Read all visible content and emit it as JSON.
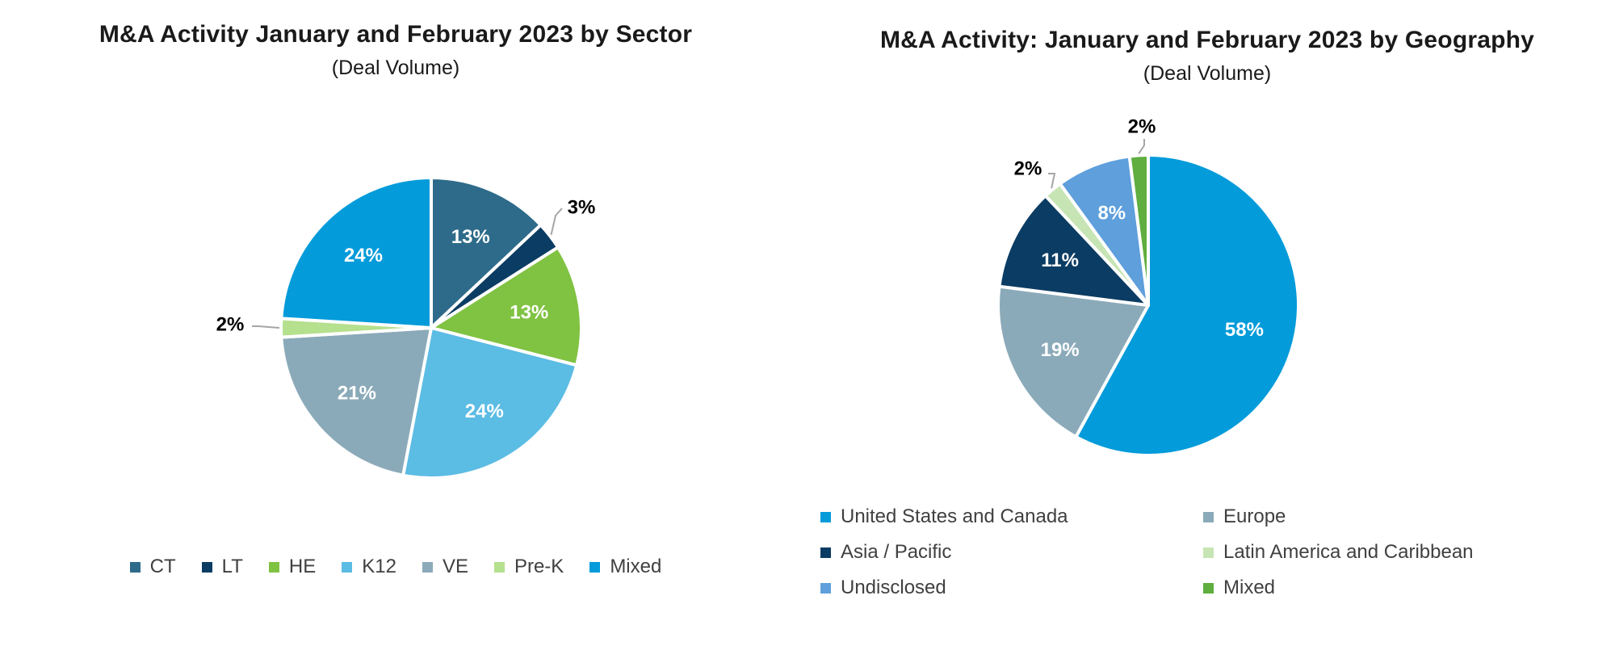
{
  "chart_data": [
    {
      "type": "pie",
      "title": "M&A Activity January and February 2023 by Sector",
      "subtitle": "(Deal Volume)",
      "slices": [
        {
          "label": "CT",
          "value": 13,
          "display": "13%",
          "color": "#2E6B8A",
          "label_color": "#ffffff"
        },
        {
          "label": "LT",
          "value": 3,
          "display": "3%",
          "color": "#0B3C63",
          "label_color": "#000000"
        },
        {
          "label": "HE",
          "value": 13,
          "display": "13%",
          "color": "#80C242",
          "label_color": "#ffffff"
        },
        {
          "label": "K12",
          "value": 24,
          "display": "24%",
          "color": "#5BBCE4",
          "label_color": "#ffffff"
        },
        {
          "label": "VE",
          "value": 21,
          "display": "21%",
          "color": "#8BAAB9",
          "label_color": "#ffffff"
        },
        {
          "label": "Pre-K",
          "value": 2,
          "display": "2%",
          "color": "#B5E08E",
          "label_color": "#000000"
        },
        {
          "label": "Mixed",
          "value": 24,
          "display": "24%",
          "color": "#039BDA",
          "label_color": "#ffffff"
        }
      ],
      "legend_position": "bottom"
    },
    {
      "type": "pie",
      "title": "M&A Activity: January and February 2023 by Geography",
      "subtitle": "(Deal Volume)",
      "slices": [
        {
          "label": "United States and Canada",
          "value": 58,
          "display": "58%",
          "color": "#039BDA",
          "label_color": "#ffffff"
        },
        {
          "label": "Europe",
          "value": 19,
          "display": "19%",
          "color": "#8BAAB9",
          "label_color": "#ffffff"
        },
        {
          "label": "Asia / Pacific",
          "value": 11,
          "display": "11%",
          "color": "#0B3C63",
          "label_color": "#ffffff"
        },
        {
          "label": "Latin America and Caribbean",
          "value": 2,
          "display": "2%",
          "color": "#C7E5B4",
          "label_color": "#000000"
        },
        {
          "label": "Undisclosed",
          "value": 8,
          "display": "8%",
          "color": "#5E9FDC",
          "label_color": "#ffffff"
        },
        {
          "label": "Mixed",
          "value": 2,
          "display": "2%",
          "color": "#5FAE3F",
          "label_color": "#000000"
        }
      ],
      "legend_position": "bottom"
    }
  ]
}
